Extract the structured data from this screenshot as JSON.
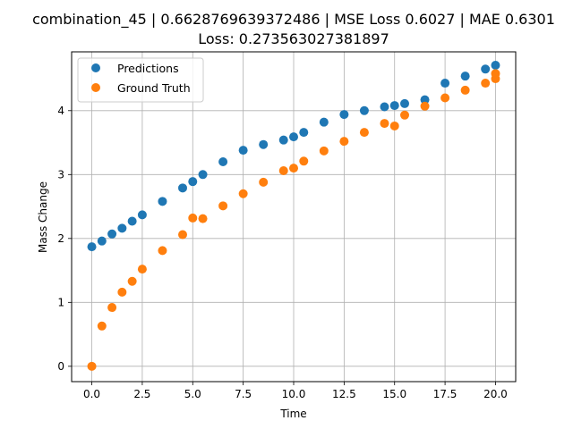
{
  "chart_data": {
    "type": "scatter",
    "title_line1": "combination_45 | 0.6628769639372486 | MSE Loss 0.6027 | MAE 0.6301",
    "title_line2": "Loss: 0.273563027381897",
    "xlabel": "Time",
    "ylabel": "Mass Change",
    "xlim": [
      -1.0,
      21.0
    ],
    "ylim": [
      -0.24,
      4.92
    ],
    "xticks": [
      0.0,
      2.5,
      5.0,
      7.5,
      10.0,
      12.5,
      15.0,
      17.5,
      20.0
    ],
    "xtick_labels": [
      "0.0",
      "2.5",
      "5.0",
      "7.5",
      "10.0",
      "12.5",
      "15.0",
      "17.5",
      "20.0"
    ],
    "yticks": [
      0,
      1,
      2,
      3,
      4
    ],
    "ytick_labels": [
      "0",
      "1",
      "2",
      "3",
      "4"
    ],
    "grid": true,
    "legend_position": "top-left",
    "series": [
      {
        "name": "Predictions",
        "color": "#1f77b4",
        "x": [
          0.0,
          0.5,
          1.0,
          1.5,
          2.0,
          2.5,
          3.5,
          4.5,
          5.0,
          5.5,
          6.5,
          7.5,
          8.5,
          9.5,
          10.0,
          10.5,
          11.5,
          12.5,
          13.5,
          14.5,
          15.0,
          15.5,
          16.5,
          17.5,
          18.5,
          19.5,
          20.0
        ],
        "y": [
          1.87,
          1.96,
          2.07,
          2.16,
          2.27,
          2.37,
          2.58,
          2.79,
          2.89,
          3.0,
          3.2,
          3.38,
          3.47,
          3.54,
          3.59,
          3.66,
          3.82,
          3.94,
          4.0,
          4.06,
          4.08,
          4.11,
          4.17,
          4.43,
          4.54,
          4.65,
          4.71
        ]
      },
      {
        "name": "Ground Truth",
        "color": "#ff7f0e",
        "x": [
          0.0,
          0.5,
          1.0,
          1.5,
          2.0,
          2.5,
          3.5,
          4.5,
          5.0,
          5.5,
          6.5,
          7.5,
          8.5,
          9.5,
          10.0,
          10.5,
          11.5,
          12.5,
          13.5,
          14.5,
          15.0,
          15.5,
          16.5,
          17.5,
          18.5,
          19.5,
          20.0,
          20.0
        ],
        "y": [
          0.0,
          0.63,
          0.92,
          1.16,
          1.33,
          1.52,
          1.81,
          2.06,
          2.32,
          2.31,
          2.51,
          2.7,
          2.88,
          3.06,
          3.1,
          3.21,
          3.37,
          3.52,
          3.66,
          3.8,
          3.76,
          3.93,
          4.07,
          4.2,
          4.32,
          4.43,
          4.5,
          4.58
        ]
      }
    ]
  }
}
